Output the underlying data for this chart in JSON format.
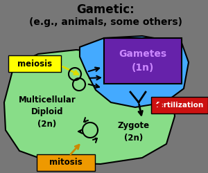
{
  "title_line1": "Gametic:",
  "title_line2": "(e.g., animals, some others)",
  "background_color": "#777777",
  "green_shape_color": "#88DD88",
  "blue_shape_color": "#44AAFF",
  "purple_box_color": "#6622AA",
  "purple_box_text": "Gametes\n(1n)",
  "purple_box_text_color": "#CC88FF",
  "yellow_meiosis_color": "#FFFF00",
  "meiosis_text": "meiosis",
  "orange_mitosis_color": "#EE9900",
  "mitosis_text": "mitosis",
  "red_fertilization_color": "#CC1111",
  "fertilization_text": "fertilization",
  "multicellular_text": "Multicellular\nDiploid\n(2n)",
  "zygote_text": "Zygote\n(2n)",
  "title_fontsize": 12,
  "subtitle_fontsize": 10,
  "label_fontsize": 8.5
}
